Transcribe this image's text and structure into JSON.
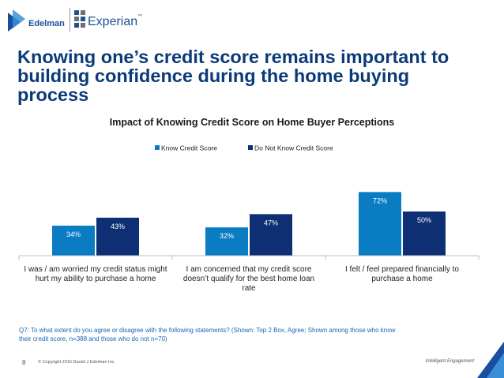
{
  "logos": {
    "edelman": "Edelman",
    "experian": "Experian",
    "experian_mark": "™"
  },
  "slide": {
    "title": "Knowing one’s credit score remains important to building confidence during the home buying process",
    "footnote": "Q7: To what extent do you agree or disagree with the following statements? (Shown: Top 2 Box, Agree; Shown among those who know their credit score, n=388 and those who do not n=70)",
    "page_number": "8",
    "copyright": "© Copyright 2016 Daniel J Edelman Inc.",
    "tagline": "Intelligent Engagement"
  },
  "colors": {
    "know": "#0a7cc4",
    "dont_know": "#0f2f74",
    "title": "#0a3a78",
    "footnote": "#1a66b5"
  },
  "chart_data": {
    "type": "bar",
    "title": "Impact of Knowing Credit Score on Home Buyer Perceptions",
    "categories": [
      "I was / am worried my credit status might hurt my ability to purchase a home",
      "I am concerned that my credit score doesn’t qualify for the best home loan rate",
      "I felt / feel prepared financially to purchase a home"
    ],
    "series": [
      {
        "name": "Know Credit Score",
        "values": [
          34,
          32,
          72
        ],
        "labels": [
          "34%",
          "32%",
          "72%"
        ]
      },
      {
        "name": "Do Not Know Credit Score",
        "values": [
          43,
          47,
          50
        ],
        "labels": [
          "43%",
          "47%",
          "50%"
        ]
      }
    ],
    "ylim": [
      0,
      100
    ],
    "legend_position": "top",
    "grid": false
  }
}
